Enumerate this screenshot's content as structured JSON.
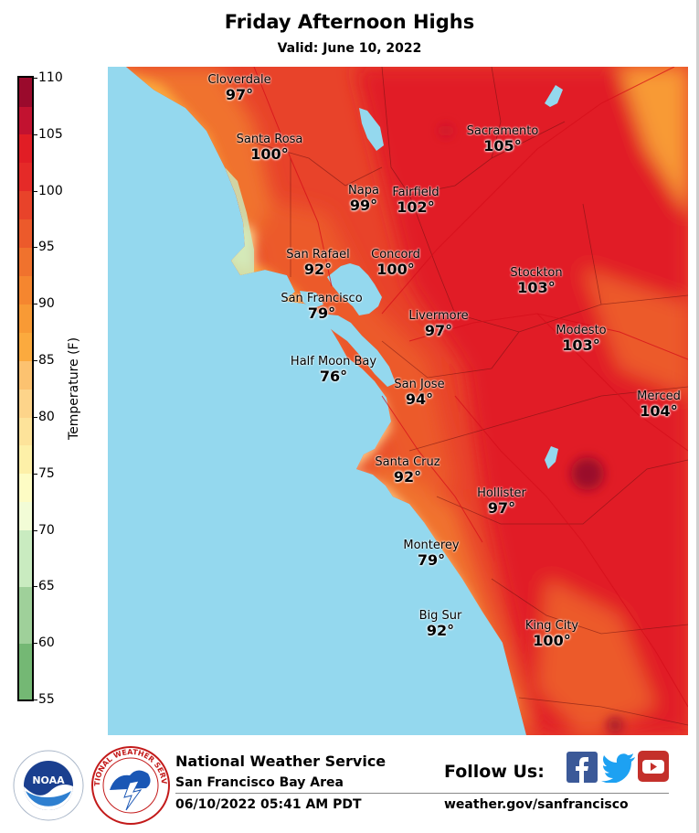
{
  "header": {
    "title": "Friday Afternoon Highs",
    "subtitle": "Valid: June 10, 2022"
  },
  "legend": {
    "label": "Temperature (F)",
    "min": 55,
    "max": 110,
    "ticks": [
      "110",
      "105",
      "100",
      "95",
      "90",
      "85",
      "80",
      "75",
      "70",
      "65",
      "60",
      "55"
    ],
    "bands": [
      {
        "from": 55,
        "to": 60,
        "color": "#74b874"
      },
      {
        "from": 60,
        "to": 65,
        "color": "#9fd09a"
      },
      {
        "from": 65,
        "to": 70,
        "color": "#c9ebc0"
      },
      {
        "from": 70,
        "to": 72.5,
        "color": "#f2fcd6"
      },
      {
        "from": 72.5,
        "to": 75,
        "color": "#fdfcc4"
      },
      {
        "from": 75,
        "to": 77.5,
        "color": "#fdf0a8"
      },
      {
        "from": 77.5,
        "to": 80,
        "color": "#fde39a"
      },
      {
        "from": 80,
        "to": 82.5,
        "color": "#fdd48a"
      },
      {
        "from": 82.5,
        "to": 85,
        "color": "#fcc270"
      },
      {
        "from": 85,
        "to": 87.5,
        "color": "#fbaa3e"
      },
      {
        "from": 87.5,
        "to": 90,
        "color": "#f89a35"
      },
      {
        "from": 90,
        "to": 92.5,
        "color": "#f5862f"
      },
      {
        "from": 92.5,
        "to": 95,
        "color": "#f0722d"
      },
      {
        "from": 95,
        "to": 97.5,
        "color": "#ec5a2b"
      },
      {
        "from": 97.5,
        "to": 100,
        "color": "#e8432a"
      },
      {
        "from": 100,
        "to": 102.5,
        "color": "#e52a28"
      },
      {
        "from": 102.5,
        "to": 105,
        "color": "#e11d25"
      },
      {
        "from": 105,
        "to": 107.5,
        "color": "#c21230"
      },
      {
        "from": 107.5,
        "to": 110,
        "color": "#9a0a2c"
      }
    ]
  },
  "map": {
    "ocean_color": "#94d8ee",
    "cities": [
      {
        "name": "Cloverdale",
        "temp": "97°"
      },
      {
        "name": "Santa Rosa",
        "temp": "100°"
      },
      {
        "name": "Sacramento",
        "temp": "105°"
      },
      {
        "name": "Napa",
        "temp": "99°"
      },
      {
        "name": "Fairfield",
        "temp": "102°"
      },
      {
        "name": "San Rafael",
        "temp": "92°"
      },
      {
        "name": "Concord",
        "temp": "100°"
      },
      {
        "name": "Stockton",
        "temp": "103°"
      },
      {
        "name": "San Francisco",
        "temp": "79°"
      },
      {
        "name": "Livermore",
        "temp": "97°"
      },
      {
        "name": "Modesto",
        "temp": "103°"
      },
      {
        "name": "Half Moon Bay",
        "temp": "76°"
      },
      {
        "name": "San Jose",
        "temp": "94°"
      },
      {
        "name": "Merced",
        "temp": "104°"
      },
      {
        "name": "Santa Cruz",
        "temp": "92°"
      },
      {
        "name": "Hollister",
        "temp": "97°"
      },
      {
        "name": "Monterey",
        "temp": "79°"
      },
      {
        "name": "Big Sur",
        "temp": "92°"
      },
      {
        "name": "King City",
        "temp": "100°"
      }
    ]
  },
  "footer": {
    "org_name": "National Weather Service",
    "office": "San Francisco Bay Area",
    "timestamp": "06/10/2022 05:41 AM PDT",
    "follow_label": "Follow Us:",
    "website": "weather.gov/sanfrancisco",
    "noaa_logo_text": "NOAA",
    "nws_logo_text": "NATIONAL WEATHER SERVICE",
    "social_icons": [
      "facebook-icon",
      "twitter-icon",
      "youtube-icon"
    ],
    "facebook_color": "#3b5998",
    "twitter_color": "#1da1f2",
    "youtube_color": "#c4302b"
  }
}
